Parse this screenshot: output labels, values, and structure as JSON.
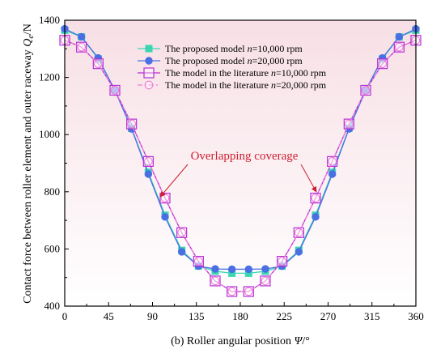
{
  "chart_data": {
    "type": "line",
    "title": "",
    "caption": {
      "prefix": "(b) Roller angular position ",
      "symbol": "Ψ",
      "unit": "/°"
    },
    "ylabel": {
      "text": "Contact force between roller element and outer raceway ",
      "symbol": "Q",
      "subscript": "e",
      "unit": "/N"
    },
    "xlim": [
      0,
      360
    ],
    "ylim": [
      400,
      1400
    ],
    "xticks": [
      0,
      45,
      90,
      135,
      180,
      225,
      270,
      315,
      360
    ],
    "yticks": [
      400,
      600,
      800,
      1000,
      1200,
      1400
    ],
    "grid": false,
    "legend_position": "top-center",
    "annotation": "Overlapping coverage",
    "x": [
      0,
      17.14,
      34.29,
      51.43,
      68.57,
      85.71,
      102.86,
      120,
      137.14,
      154.29,
      171.43,
      188.57,
      205.71,
      222.86,
      240,
      257.14,
      274.29,
      291.43,
      308.57,
      325.71,
      342.86,
      360
    ],
    "series": [
      {
        "name_prefix": "The proposed model  ",
        "name_var": "n",
        "name_value": "=10,000 rpm",
        "color": "#3ad6b2",
        "marker": "square-filled",
        "dashed": false,
        "values": [
          1365,
          1342,
          1265,
          1155,
          1022,
          868,
          718,
          595,
          540,
          522,
          515,
          515,
          522,
          540,
          595,
          718,
          868,
          1022,
          1155,
          1265,
          1342,
          1365
        ]
      },
      {
        "name_prefix": "The proposed model  ",
        "name_var": "n",
        "name_value": "=20,000 rpm",
        "color": "#4a6fe3",
        "marker": "circle-filled",
        "dashed": false,
        "values": [
          1370,
          1342,
          1268,
          1155,
          1020,
          862,
          712,
          590,
          540,
          530,
          529,
          529,
          530,
          540,
          590,
          712,
          862,
          1020,
          1155,
          1268,
          1342,
          1370
        ]
      },
      {
        "name_prefix": "The model in the literature  ",
        "name_var": "n",
        "name_value": "=10,000 rpm",
        "color": "#b52fd6",
        "marker": "square-open",
        "dashed": false,
        "values": [
          1330,
          1306,
          1248,
          1155,
          1037,
          906,
          778,
          657,
          557,
          488,
          451,
          451,
          488,
          557,
          657,
          778,
          906,
          1037,
          1155,
          1248,
          1306,
          1330
        ]
      },
      {
        "name_prefix": "The model in the literature  ",
        "name_var": "n",
        "name_value": "=20,000 rpm",
        "color": "#ee7dd6",
        "marker": "circle-open",
        "dashed": true,
        "values": [
          1330,
          1306,
          1248,
          1155,
          1037,
          906,
          778,
          657,
          557,
          488,
          451,
          451,
          488,
          557,
          657,
          778,
          906,
          1037,
          1155,
          1248,
          1306,
          1330
        ]
      }
    ]
  }
}
